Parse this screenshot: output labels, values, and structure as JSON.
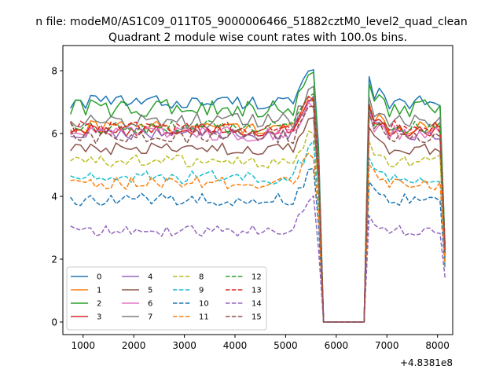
{
  "chart_data": {
    "type": "line",
    "suptitle": "n file: modeM0/AS1C09_011T05_9000006466_51882cztM0_level2_quad_clean",
    "title": "Quadrant 2 module wise count rates with 100.0s bins.",
    "xlabel": "",
    "ylabel": "",
    "x_offset_label": "+4.8381e8",
    "xlim": [
      600,
      8300
    ],
    "ylim": [
      -0.4,
      8.8
    ],
    "xticks": [
      1000,
      2000,
      3000,
      4000,
      5000,
      6000,
      7000,
      8000
    ],
    "xtick_labels": [
      "1000",
      "2000",
      "3000",
      "4000",
      "5000",
      "6000",
      "7000",
      "8000"
    ],
    "yticks": [
      0,
      2,
      4,
      6,
      8
    ],
    "ytick_labels": [
      "0",
      "2",
      "4",
      "6",
      "8"
    ],
    "grid": false,
    "legend_location": "lower-left",
    "legend_columns": 4,
    "x_start": 750,
    "x_step": 100,
    "n_points": 75,
    "gap_start": 5750,
    "gap_end": 6550,
    "series": [
      {
        "name": "0",
        "color": "#1f77b4",
        "dashed": false,
        "level": 7.0,
        "noise": 0.22,
        "end_value": 2.3
      },
      {
        "name": "1",
        "color": "#ff7f0e",
        "dashed": false,
        "level": 6.2,
        "noise": 0.22,
        "end_value": 2.4
      },
      {
        "name": "2",
        "color": "#2ca02c",
        "dashed": false,
        "level": 6.8,
        "noise": 0.3,
        "end_value": 2.3
      },
      {
        "name": "3",
        "color": "#d62728",
        "dashed": false,
        "level": 6.1,
        "noise": 0.2,
        "end_value": 2.2
      },
      {
        "name": "4",
        "color": "#9467bd",
        "dashed": false,
        "level": 6.0,
        "noise": 0.22,
        "end_value": 2.1
      },
      {
        "name": "5",
        "color": "#8c564b",
        "dashed": false,
        "level": 5.5,
        "noise": 0.2,
        "end_value": 2.0
      },
      {
        "name": "6",
        "color": "#e377c2",
        "dashed": false,
        "level": 6.0,
        "noise": 0.25,
        "end_value": 2.2
      },
      {
        "name": "7",
        "color": "#7f7f7f",
        "dashed": false,
        "level": 6.4,
        "noise": 0.25,
        "end_value": 2.3
      },
      {
        "name": "8",
        "color": "#bcbd22",
        "dashed": true,
        "level": 5.1,
        "noise": 0.22,
        "end_value": 2.0
      },
      {
        "name": "9",
        "color": "#17becf",
        "dashed": true,
        "level": 4.6,
        "noise": 0.22,
        "end_value": 1.9
      },
      {
        "name": "10",
        "color": "#1f77b4",
        "dashed": true,
        "level": 3.9,
        "noise": 0.2,
        "end_value": 1.7
      },
      {
        "name": "11",
        "color": "#ff7f0e",
        "dashed": true,
        "level": 4.4,
        "noise": 0.22,
        "end_value": 1.8
      },
      {
        "name": "12",
        "color": "#2ca02c",
        "dashed": true,
        "level": 6.2,
        "noise": 0.22,
        "end_value": 2.3
      },
      {
        "name": "13",
        "color": "#d62728",
        "dashed": true,
        "level": 6.2,
        "noise": 0.22,
        "end_value": 2.3
      },
      {
        "name": "14",
        "color": "#9467bd",
        "dashed": true,
        "level": 2.9,
        "noise": 0.18,
        "end_value": 1.4
      },
      {
        "name": "15",
        "color": "#8c564b",
        "dashed": true,
        "level": 5.9,
        "noise": 0.22,
        "end_value": 2.2
      }
    ]
  }
}
